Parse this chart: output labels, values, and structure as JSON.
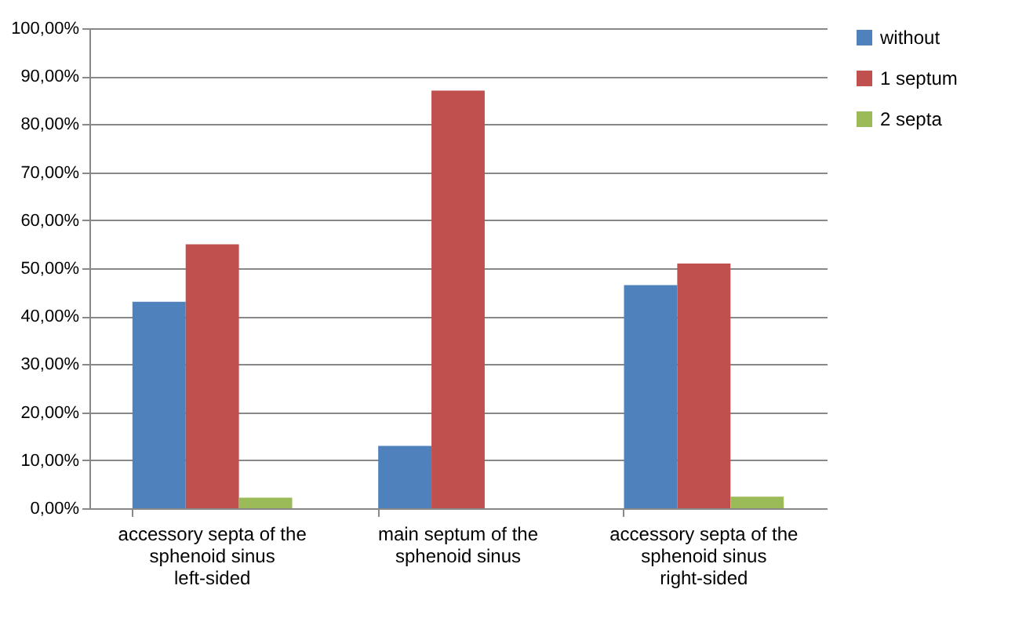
{
  "chart_data": {
    "type": "bar",
    "categories": [
      "accessory septa of the sphenoid sinus left-sided",
      "main septum of the sphenoid sinus",
      "accessory septa of the sphenoid sinus right-sided"
    ],
    "series": [
      {
        "name": "without",
        "color": "#4f81bd",
        "values": [
          43.0,
          13.0,
          46.5
        ]
      },
      {
        "name": "1 septum",
        "color": "#c0504d",
        "values": [
          55.0,
          87.0,
          51.0
        ]
      },
      {
        "name": "2 septa",
        "color": "#9bbb59",
        "values": [
          2.2,
          0,
          2.4
        ]
      }
    ],
    "ylim": [
      0,
      100
    ],
    "yticks": [
      {
        "value": 0,
        "label": "0,00%"
      },
      {
        "value": 10,
        "label": "10,00%"
      },
      {
        "value": 20,
        "label": "20,00%"
      },
      {
        "value": 30,
        "label": "30,00%"
      },
      {
        "value": 40,
        "label": "40,00%"
      },
      {
        "value": 50,
        "label": "50,00%"
      },
      {
        "value": 60,
        "label": "60,00%"
      },
      {
        "value": 70,
        "label": "70,00%"
      },
      {
        "value": 80,
        "label": "80,00%"
      },
      {
        "value": 90,
        "label": "90,00%"
      },
      {
        "value": 100,
        "label": "100,00%"
      }
    ],
    "grid": "y",
    "legend": "right"
  }
}
